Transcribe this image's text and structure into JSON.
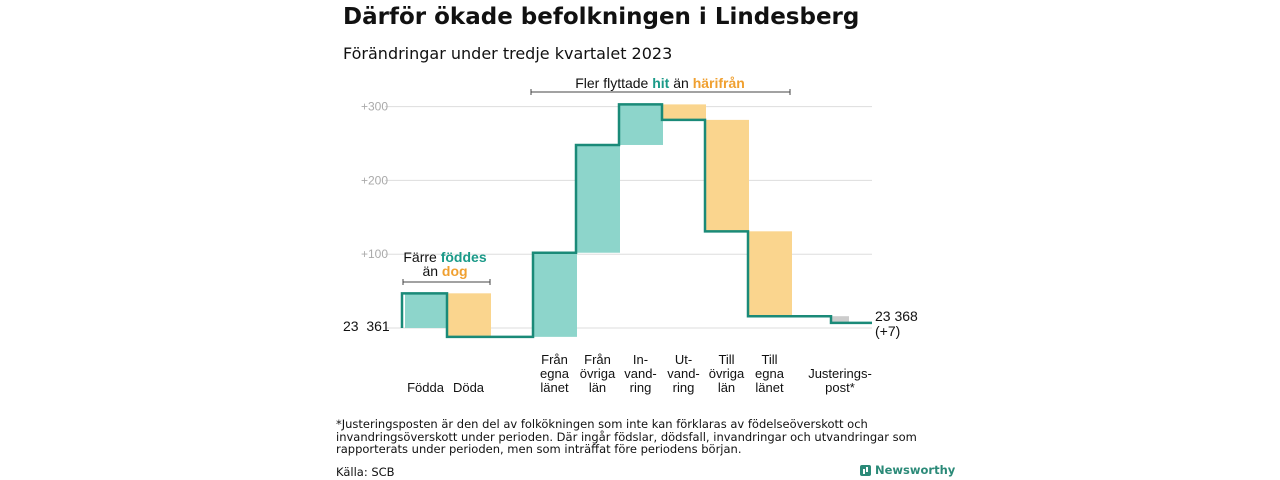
{
  "title": "Därför ökade befolkningen i Lindesberg",
  "subtitle": "Förändringar under tredje kvartalet 2023",
  "footnote": "*Justeringsposten är den del av folkökningen som inte kan förklaras av födelseöverskott och invandringsöverskott under perioden. Där ingår födslar, dödsfall, invandringar och utvandringar som rapporterats under perioden, men som inträffat före periodens början.",
  "source": "Källa: SCB",
  "brand": "Newsworthy",
  "annotations": {
    "births_deaths": {
      "line1_prefix": "Färre ",
      "line1_highlight": "föddes",
      "line2_prefix": "än ",
      "line2_highlight": "dog"
    },
    "migration": {
      "prefix": "Fler flyttade ",
      "hit": "hit",
      "middle": " än ",
      "harifran": "härifrån"
    }
  },
  "start_label": "23  361",
  "end_label": "23 368",
  "end_change": "(+7)",
  "colors": {
    "positive": "#8dd5cb",
    "negative": "#fad58e",
    "adjustment": "#cccccc",
    "line": "#1a8a78",
    "hit_text": "#1a9a88",
    "harifran_text": "#f0a030",
    "grid": "#dddddd",
    "tick": "#aaaaaa"
  },
  "chart_data": {
    "type": "waterfall",
    "y_ticks": [
      "+300",
      "+200",
      "+100"
    ],
    "y_tick_values": [
      300,
      200,
      100
    ],
    "ylim": [
      -15,
      320
    ],
    "grid": true,
    "base": 23361,
    "bars": [
      {
        "label": "Födda",
        "change": 47,
        "kind": "positive"
      },
      {
        "label": "Döda",
        "change": -59,
        "kind": "negative"
      },
      {
        "label": "Från\negna\nlänet",
        "change": 114,
        "kind": "positive"
      },
      {
        "label": "Från\növriga\nlän",
        "change": 146,
        "kind": "positive"
      },
      {
        "label": "In-\nvand-\nring",
        "change": 55,
        "kind": "positive"
      },
      {
        "label": "Ut-\nvand-\nring",
        "change": -21,
        "kind": "negative"
      },
      {
        "label": "Till\növriga\nlän",
        "change": -151,
        "kind": "negative"
      },
      {
        "label": "Till\negna\nlänet",
        "change": -115,
        "kind": "negative"
      },
      {
        "label": "Justerings-\npost*",
        "change": -9,
        "kind": "adjustment"
      }
    ],
    "total_change": 7
  }
}
